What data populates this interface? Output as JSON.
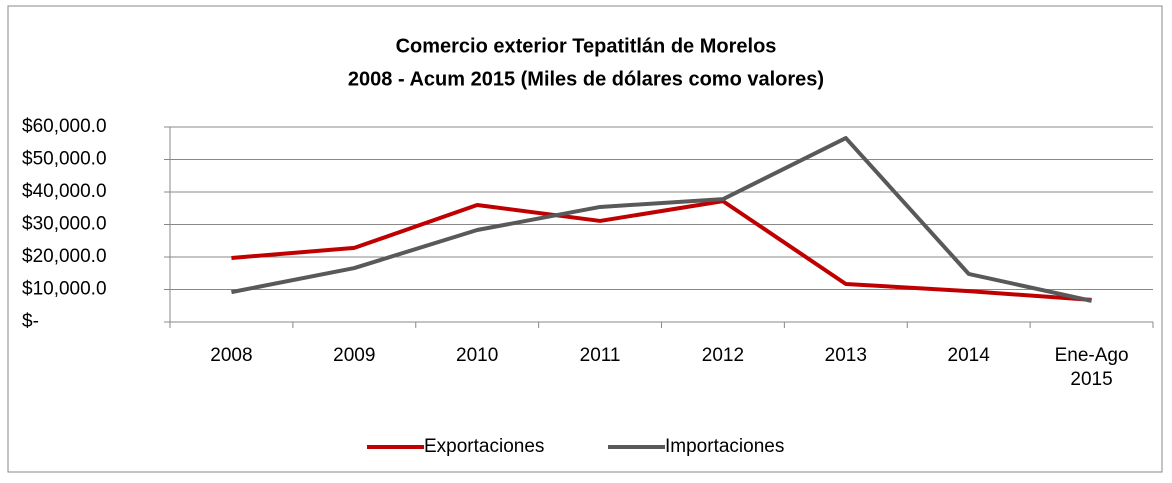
{
  "chart_data": {
    "type": "line",
    "title": "Comercio exterior Tepatitlán de Morelos",
    "subtitle": "2008 - Acum 2015 (Miles de dólares como valores)",
    "categories": [
      "2008",
      "2009",
      "2010",
      "2011",
      "2012",
      "2013",
      "2014",
      "Ene-Ago 2015"
    ],
    "series": [
      {
        "name": "Exportaciones",
        "color": "#c00000",
        "values": [
          19700,
          22800,
          36000,
          31100,
          37200,
          11700,
          9500,
          6800
        ]
      },
      {
        "name": "Importaciones",
        "color": "#595959",
        "values": [
          9200,
          16600,
          28300,
          35400,
          37800,
          56600,
          14800,
          6500
        ]
      }
    ],
    "ylim": [
      0,
      60000
    ],
    "yticks": [
      {
        "value": 0,
        "label": "$-"
      },
      {
        "value": 10000,
        "label": "$10,000.0"
      },
      {
        "value": 20000,
        "label": "$20,000.0"
      },
      {
        "value": 30000,
        "label": "$30,000.0"
      },
      {
        "value": 40000,
        "label": "$40,000.0"
      },
      {
        "value": 50000,
        "label": "$50,000.0"
      },
      {
        "value": 60000,
        "label": "$60,000.0"
      }
    ],
    "grid": true,
    "legend": "bottom"
  }
}
